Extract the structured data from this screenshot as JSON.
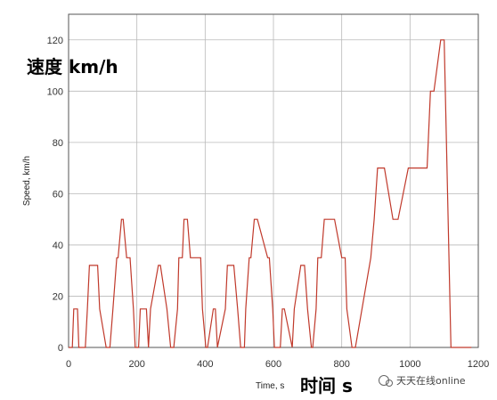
{
  "chart_data": {
    "type": "line",
    "title": "",
    "xlabel": "Time, s",
    "ylabel": "Speed, km/h",
    "xlim": [
      0,
      1200
    ],
    "ylim": [
      0,
      130
    ],
    "xticks": [
      0,
      200,
      400,
      600,
      800,
      1000,
      1200
    ],
    "yticks": [
      0,
      20,
      40,
      60,
      80,
      100,
      120
    ],
    "grid": true,
    "legend": "none",
    "series": [
      {
        "color": "#c0392b",
        "x": [
          0,
          11,
          15,
          26,
          30,
          49,
          55,
          61,
          85,
          91,
          110,
          121,
          130,
          141,
          145,
          155,
          160,
          170,
          180,
          190,
          195,
          205,
          210,
          228,
          234,
          240,
          263,
          269,
          288,
          299,
          308,
          319,
          323,
          333,
          338,
          348,
          357,
          387,
          392,
          402,
          407,
          424,
          430,
          436,
          459,
          465,
          484,
          495,
          504,
          515,
          519,
          529,
          534,
          544,
          553,
          583,
          588,
          598,
          603,
          620,
          626,
          632,
          655,
          661,
          680,
          691,
          700,
          711,
          715,
          725,
          730,
          740,
          749,
          779,
          800,
          810,
          815,
          830,
          840,
          885,
          895,
          905,
          925,
          950,
          955,
          965,
          995,
          1005,
          1050,
          1060,
          1070,
          1090,
          1100,
          1110,
          1120,
          1130,
          1140,
          1150,
          1160,
          1180
        ],
        "y": [
          0,
          0,
          15,
          15,
          0,
          0,
          15,
          32,
          32,
          15,
          0,
          0,
          15,
          35,
          35,
          50,
          50,
          35,
          35,
          15,
          0,
          0,
          15,
          15,
          0,
          15,
          32,
          32,
          15,
          0,
          0,
          15,
          35,
          35,
          50,
          50,
          35,
          35,
          15,
          0,
          0,
          15,
          15,
          0,
          15,
          32,
          32,
          15,
          0,
          0,
          15,
          35,
          35,
          50,
          50,
          35,
          35,
          15,
          0,
          0,
          15,
          15,
          0,
          15,
          32,
          32,
          15,
          0,
          0,
          15,
          35,
          35,
          50,
          50,
          35,
          35,
          15,
          0,
          0,
          35,
          50,
          70,
          70,
          50,
          50,
          50,
          70,
          70,
          70,
          100,
          100,
          120,
          120,
          60,
          0,
          0,
          0,
          0,
          0,
          0
        ]
      }
    ]
  },
  "overlay": {
    "speed_label_cn": "速度 km/h",
    "time_label_cn": "时间 s",
    "watermark": "天天在线online"
  },
  "colors": {
    "series": "#c0392b",
    "grid": "#b9b9b9",
    "frame": "#555555"
  }
}
